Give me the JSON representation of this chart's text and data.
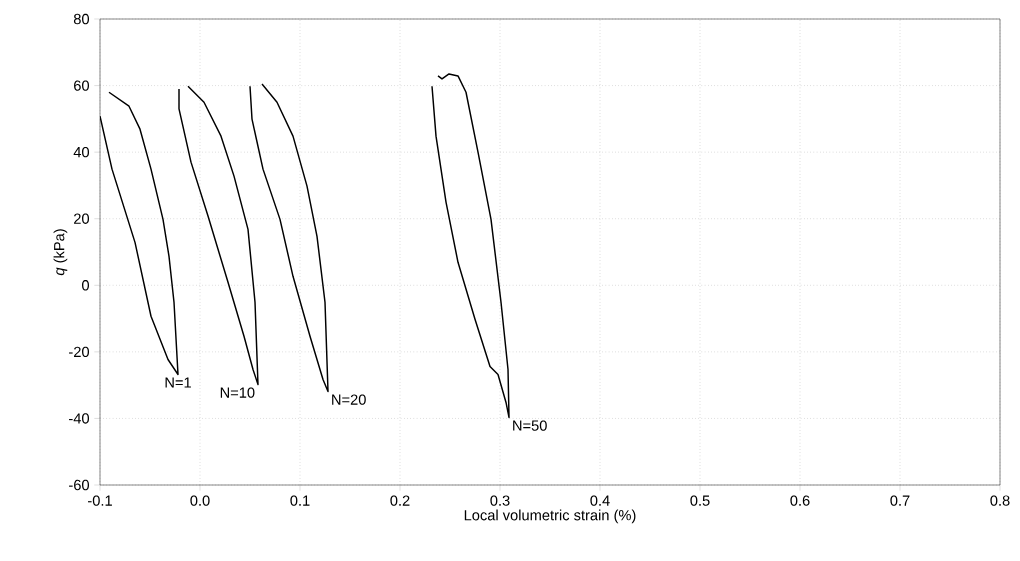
{
  "chart_data": {
    "type": "line",
    "xlabel": "Local volumetric strain (%)",
    "ylabel": "*q* (kPa)",
    "xlim": [
      -0.1,
      0.8
    ],
    "ylim": [
      -60,
      80
    ],
    "xticks": [
      -0.1,
      {
        "value": 0.0,
        "label": "0.0"
      },
      0.1,
      0.2,
      0.3,
      0.4,
      0.5,
      0.6,
      0.7,
      0.8
    ],
    "yticks": [
      -60,
      -40,
      -20,
      0,
      20,
      40,
      60,
      80
    ],
    "grid": true,
    "marker": "none",
    "line_style": "solid",
    "series": [
      {
        "color": "#000000",
        "x": [
          -0.1,
          -0.088,
          -0.065,
          -0.049,
          -0.032,
          -0.022,
          -0.026,
          -0.031,
          -0.037,
          -0.049,
          -0.06,
          -0.071,
          -0.091
        ],
        "values": [
          50.8,
          34.9,
          12.9,
          -9.3,
          -22.3,
          -26.8,
          -5.1,
          8.7,
          19.8,
          34.9,
          46.9,
          53.8,
          58.0
        ]
      },
      {
        "color": "#000000",
        "x": [
          -0.021,
          -0.021,
          -0.009,
          0.008,
          0.028,
          0.044,
          0.053,
          0.058,
          0.055,
          0.048,
          0.034,
          0.021,
          0.004,
          -0.012
        ],
        "values": [
          59,
          53,
          37,
          20.8,
          0.9,
          -15.3,
          -25.3,
          -29.8,
          -5.1,
          16.8,
          32.8,
          44.8,
          55,
          59.8
        ]
      },
      {
        "color": "#000000",
        "x": [
          0.05,
          0.052,
          0.063,
          0.08,
          0.093,
          0.11,
          0.123,
          0.128,
          0.125,
          0.117,
          0.107,
          0.093,
          0.077,
          0.062
        ],
        "values": [
          59.8,
          49.9,
          34.9,
          19.8,
          2.7,
          -15.3,
          -28.3,
          -31.9,
          -5.1,
          14.7,
          29.8,
          44.8,
          55,
          60.5
        ]
      },
      {
        "color": "#000000",
        "x": [
          0.232,
          0.236,
          0.246,
          0.258,
          0.275,
          0.29,
          0.298,
          0.306,
          0.309,
          0.308,
          0.301,
          0.291,
          0.278,
          0.266,
          0.258,
          0.249,
          0.242,
          0.238
        ],
        "values": [
          59.8,
          44.8,
          25,
          6.9,
          -10.2,
          -24.4,
          -26.8,
          -35.2,
          -39.7,
          -25.3,
          -5.1,
          19.8,
          40,
          58,
          62.9,
          63.5,
          62,
          62.9
        ]
      }
    ],
    "annotations": [
      "N=1",
      "N=10",
      "N=20",
      "N=50"
    ]
  }
}
